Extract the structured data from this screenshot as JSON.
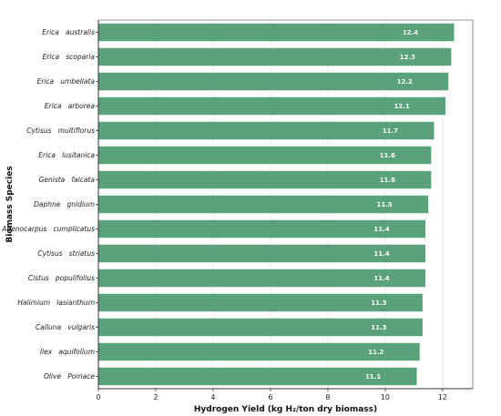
{
  "chart_data": {
    "type": "bar",
    "orientation": "horizontal",
    "categories": [
      "Erica   australis",
      "Erica   scoparia",
      "Erica   umbellata",
      "Erica   arborea",
      "Cytisus   multiflorus",
      "Erica   lusitanica",
      "Genista   falcata",
      "Daphne   gnidium",
      "Adenocarpus   cumplicatus",
      "Cytisus   striatus",
      "Cistus   populifolius",
      "Halimium   lasianthum",
      "Calluna   vulgaris",
      "Ilex   aquifolium",
      "Olive   Pomace"
    ],
    "values": [
      12.4,
      12.3,
      12.2,
      12.1,
      11.7,
      11.6,
      11.6,
      11.5,
      11.4,
      11.4,
      11.4,
      11.3,
      11.3,
      11.2,
      11.1
    ],
    "value_labels": [
      "12.4",
      "12.3",
      "12.2",
      "12.1",
      "11.7",
      "11.6",
      "11.6",
      "11.5",
      "11.4",
      "11.4",
      "11.4",
      "11.3",
      "11.3",
      "11.2",
      "11.1"
    ],
    "xlabel": "Hydrogen Yield (kg H₂/ton dry biomass)",
    "ylabel": "Biomass Species",
    "xlim": [
      0,
      13.05
    ],
    "xticks": [
      0,
      2,
      4,
      6,
      8,
      10,
      12
    ],
    "xtick_labels": [
      "0",
      "2",
      "4",
      "6",
      "8",
      "10",
      "12"
    ],
    "grid": "vertical",
    "bar_color": "#5aa27a",
    "grid_color": "#e6e6e6",
    "axis_color": "#333333"
  }
}
